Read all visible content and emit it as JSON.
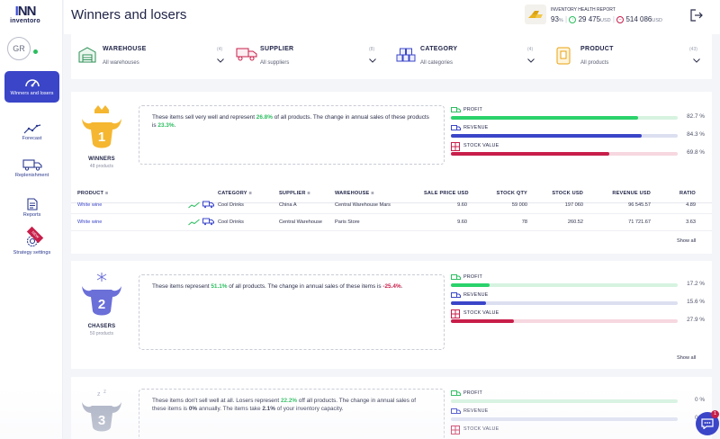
{
  "app": {
    "logo_mark": "INN",
    "logo_name": "inventoro"
  },
  "user": {
    "initials": "GR"
  },
  "nav": [
    {
      "label": "Winners and losers",
      "icon": "gauge-icon",
      "active": true
    },
    {
      "label": "Forecast",
      "icon": "trend-line-icon"
    },
    {
      "label": "Replenishment",
      "icon": "truck-icon"
    },
    {
      "label": "Reports",
      "icon": "document-icon"
    },
    {
      "label": "Strategy settings",
      "icon": "gear-target-icon",
      "ribbon": "NEW"
    }
  ],
  "header": {
    "title": "Winners and losers",
    "report_label": "INVENTORY HEALTH REPORT",
    "health_value": "93",
    "health_unit": "%",
    "up_value": "29 475",
    "up_unit": "USD",
    "down_value": "514 086",
    "down_unit": "USD"
  },
  "filters": [
    {
      "label": "WAREHOUSE",
      "count": "(4)",
      "value": "All warehouses",
      "icon": "warehouse-icon"
    },
    {
      "label": "SUPPLIER",
      "count": "(8)",
      "value": "All suppliers",
      "icon": "supplier-truck-icon"
    },
    {
      "label": "CATEGORY",
      "count": "(4)",
      "value": "All categories",
      "icon": "category-boxes-icon"
    },
    {
      "label": "PRODUCT",
      "count": "(43)",
      "value": "All products",
      "icon": "product-icon"
    }
  ],
  "groups": [
    {
      "name": "WINNERS",
      "count": "48 products",
      "rank": "1",
      "text_a": "These items sell very well and represent ",
      "share": "26.8%",
      "text_b": " of all products. The change in annual sales of these products is ",
      "change": "23.3%",
      "text_c": ".",
      "metrics": [
        {
          "label": "PROFIT",
          "value": "82.7 %",
          "fraction": 0.827
        },
        {
          "label": "REVENUE",
          "value": "84.3 %",
          "fraction": 0.843
        },
        {
          "label": "STOCK VALUE",
          "value": "69.8 %",
          "fraction": 0.698
        }
      ],
      "show_all": "Show all"
    },
    {
      "name": "CHASERS",
      "count": "50 products",
      "rank": "2",
      "text_a": "These items represent ",
      "share": "51.1%",
      "text_b": " of all products. The change in annual sales of these items is ",
      "change": "-25.4%",
      "text_c": ".",
      "metrics": [
        {
          "label": "PROFIT",
          "value": "17.2 %",
          "fraction": 0.172
        },
        {
          "label": "REVENUE",
          "value": "15.6 %",
          "fraction": 0.156
        },
        {
          "label": "STOCK VALUE",
          "value": "27.9 %",
          "fraction": 0.279
        }
      ],
      "show_all": "Show all"
    },
    {
      "name": "",
      "count": "",
      "rank": "3",
      "text_a": "These items don't sell well at all. Losers represent ",
      "share": "22.2%",
      "text_b": " off all products. The change in annual sales of these items is ",
      "change": "0%",
      "text_c": " annually. The items take ",
      "capacity": "2.1%",
      "text_d": " of your inventory capacity.",
      "metrics": [
        {
          "label": "PROFIT",
          "value": "0 %",
          "fraction": 0
        },
        {
          "label": "REVENUE",
          "value": "0 %",
          "fraction": 0
        },
        {
          "label": "STOCK VALUE",
          "value": "",
          "fraction": 0
        }
      ]
    }
  ],
  "table": {
    "headers": [
      "PRODUCT",
      "CATEGORY",
      "SUPPLIER",
      "WAREHOUSE",
      "SALE PRICE USD",
      "STOCK QTY",
      "STOCK USD",
      "REVENUE USD",
      "RATIO"
    ],
    "rows": [
      [
        "White wine",
        "Cool Drinks",
        "China A",
        "Central Warehouse Mars",
        "9.60",
        "59 000",
        "197 060",
        "96 545.57",
        "4.89"
      ],
      [
        "White wine",
        "Cool Drinks",
        "Central Warehouse",
        "Paris Store",
        "9.60",
        "78",
        "260.52",
        "71 721.67",
        "3.63"
      ]
    ]
  },
  "chat": {
    "badge": "1"
  },
  "colors": {
    "accent": "#3a45c8",
    "profit": "#2bd26b",
    "profit_track": "#d6f3e0",
    "revenue": "#3a45c8",
    "revenue_track": "#dcdff0",
    "stock": "#c81e4a",
    "stock_track": "#f7d7e0",
    "winners": "#f5b731",
    "chasers": "#6b6fd8",
    "losers": "#aab0c2"
  }
}
